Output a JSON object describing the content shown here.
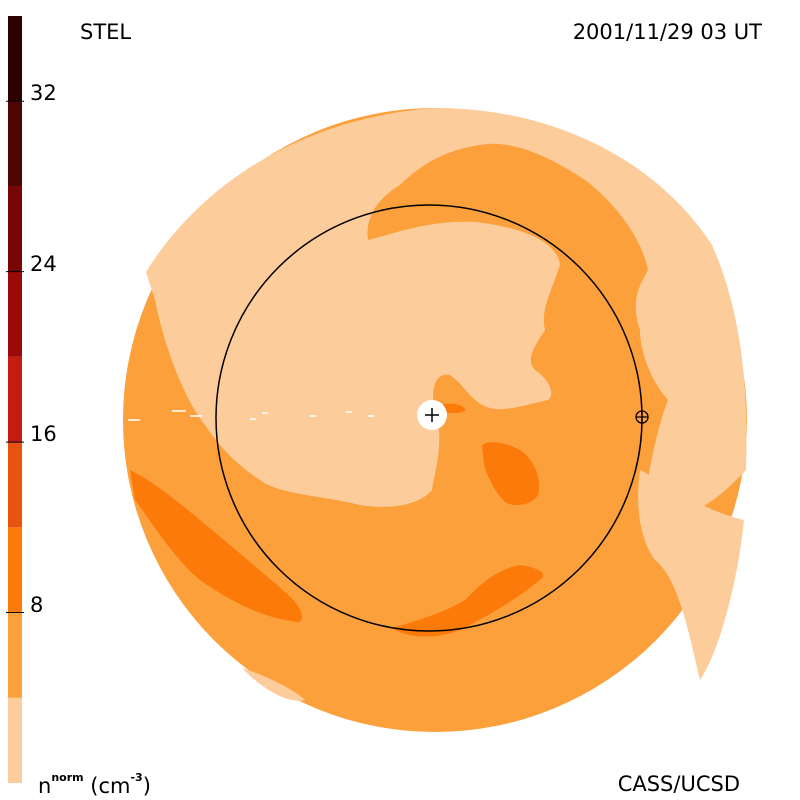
{
  "header": {
    "observatory": "STEL",
    "timestamp": "2001/11/29 03 UT"
  },
  "footer": {
    "credit": "CASS/UCSD",
    "units_base": "n",
    "units_sup": "norm",
    "units_rest": "(cm",
    "units_exp": "-3",
    "units_close": ")"
  },
  "colorbar": {
    "min": 0,
    "max": 36,
    "ticks": [
      {
        "value": 8,
        "label": "8"
      },
      {
        "value": 16,
        "label": "16"
      },
      {
        "value": 24,
        "label": "24"
      },
      {
        "value": 32,
        "label": "32"
      }
    ],
    "bands": [
      {
        "from": 0,
        "to": 4,
        "color": "#fdcc9b"
      },
      {
        "from": 4,
        "to": 8,
        "color": "#fca03c"
      },
      {
        "from": 8,
        "to": 12,
        "color": "#fc7a0a"
      },
      {
        "from": 12,
        "to": 16,
        "color": "#e85410"
      },
      {
        "from": 16,
        "to": 20,
        "color": "#c41c10"
      },
      {
        "from": 20,
        "to": 24,
        "color": "#9c0a08"
      },
      {
        "from": 24,
        "to": 28,
        "color": "#780606"
      },
      {
        "from": 28,
        "to": 32,
        "color": "#500404"
      },
      {
        "from": 32,
        "to": 36,
        "color": "#2c0202"
      }
    ]
  },
  "map_colors": {
    "low": "#fdcc9b",
    "mid": "#fca03c",
    "high": "#fc7a0a",
    "outline": "#000000",
    "sun": "#ffffff"
  }
}
